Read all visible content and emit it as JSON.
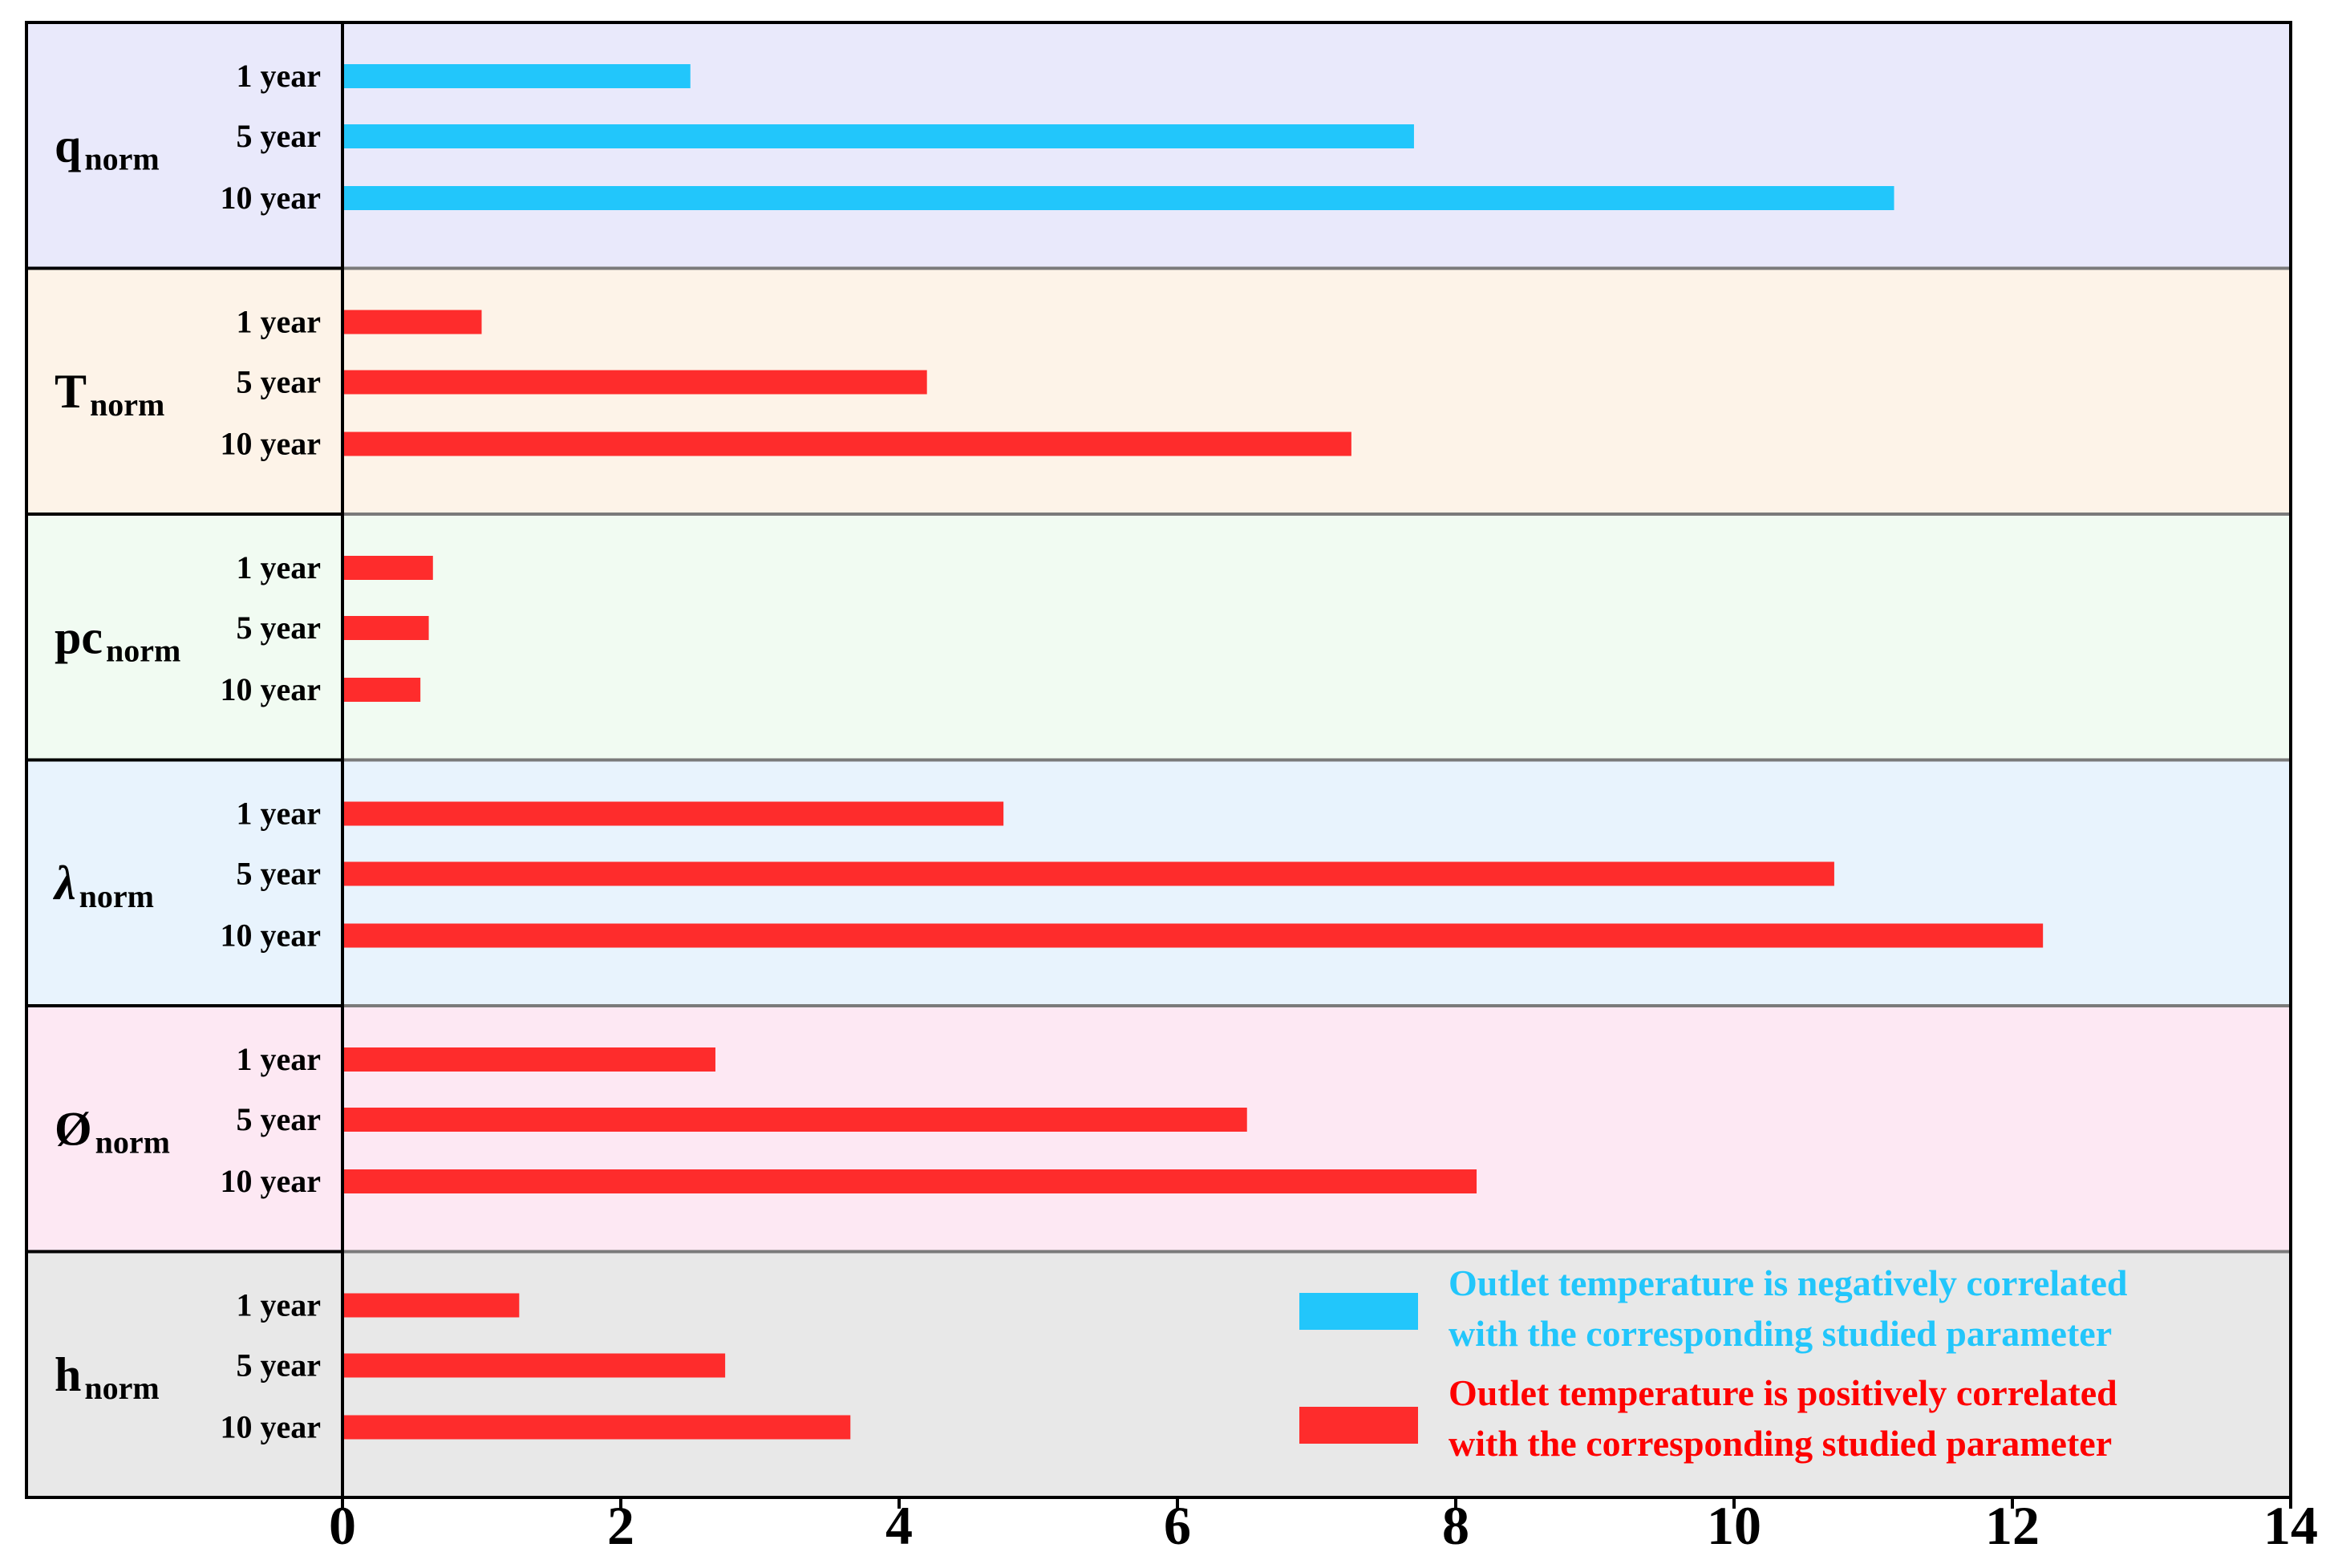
{
  "chart_data": {
    "type": "bar",
    "orientation": "horizontal",
    "xlim": [
      0,
      14
    ],
    "x_ticks": [
      "0",
      "2",
      "4",
      "6",
      "8",
      "10",
      "12",
      "14"
    ],
    "grid": false,
    "legend_position": "bottom-right",
    "groups": [
      {
        "label_main": "q",
        "label_sub": "norm",
        "background": "#e9e9fb",
        "bars": [
          {
            "label": "1 year",
            "value": 2.5,
            "correlation": "negative"
          },
          {
            "label": "5 year",
            "value": 7.7,
            "correlation": "negative"
          },
          {
            "label": "10 year",
            "value": 11.15,
            "correlation": "negative"
          }
        ]
      },
      {
        "label_main": "T",
        "label_sub": "norm",
        "background": "#fdf3e8",
        "bars": [
          {
            "label": "1 year",
            "value": 1.0,
            "correlation": "positive"
          },
          {
            "label": "5 year",
            "value": 4.2,
            "correlation": "positive"
          },
          {
            "label": "10 year",
            "value": 7.25,
            "correlation": "positive"
          }
        ]
      },
      {
        "label_main": "pc",
        "label_sub": "norm",
        "background": "#f1fbf2",
        "bars": [
          {
            "label": "1 year",
            "value": 0.65,
            "correlation": "positive"
          },
          {
            "label": "5 year",
            "value": 0.62,
            "correlation": "positive"
          },
          {
            "label": "10 year",
            "value": 0.56,
            "correlation": "positive"
          }
        ]
      },
      {
        "label_main": "λ",
        "label_sub": "norm",
        "background": "#e8f3fd",
        "bars": [
          {
            "label": "1 year",
            "value": 4.75,
            "correlation": "positive"
          },
          {
            "label": "5 year",
            "value": 10.72,
            "correlation": "positive"
          },
          {
            "label": "10 year",
            "value": 12.22,
            "correlation": "positive"
          }
        ]
      },
      {
        "label_main": "Ø",
        "label_sub": "norm",
        "background": "#fde8f3",
        "bars": [
          {
            "label": "1 year",
            "value": 2.68,
            "correlation": "positive"
          },
          {
            "label": "5 year",
            "value": 6.5,
            "correlation": "positive"
          },
          {
            "label": "10 year",
            "value": 8.15,
            "correlation": "positive"
          }
        ]
      },
      {
        "label_main": "h",
        "label_sub": "norm",
        "background": "#e8e8e8",
        "bars": [
          {
            "label": "1 year",
            "value": 1.27,
            "correlation": "positive"
          },
          {
            "label": "5 year",
            "value": 2.75,
            "correlation": "positive"
          },
          {
            "label": "10 year",
            "value": 3.65,
            "correlation": "positive"
          }
        ]
      }
    ],
    "legend": [
      {
        "key": "negative",
        "color": "#22c6fb",
        "line1": "Outlet temperature is negatively correlated",
        "line2": "with the corresponding studied parameter"
      },
      {
        "key": "positive",
        "color": "#fe2c2c",
        "line1": "Outlet temperature is positively correlated",
        "line2": "with the corresponding studied parameter"
      }
    ],
    "colors": {
      "negative": "#22c6fb",
      "positive": "#fe2c2c",
      "legend_negative_text": "#22c6fb",
      "legend_positive_text": "#fe0000"
    }
  }
}
